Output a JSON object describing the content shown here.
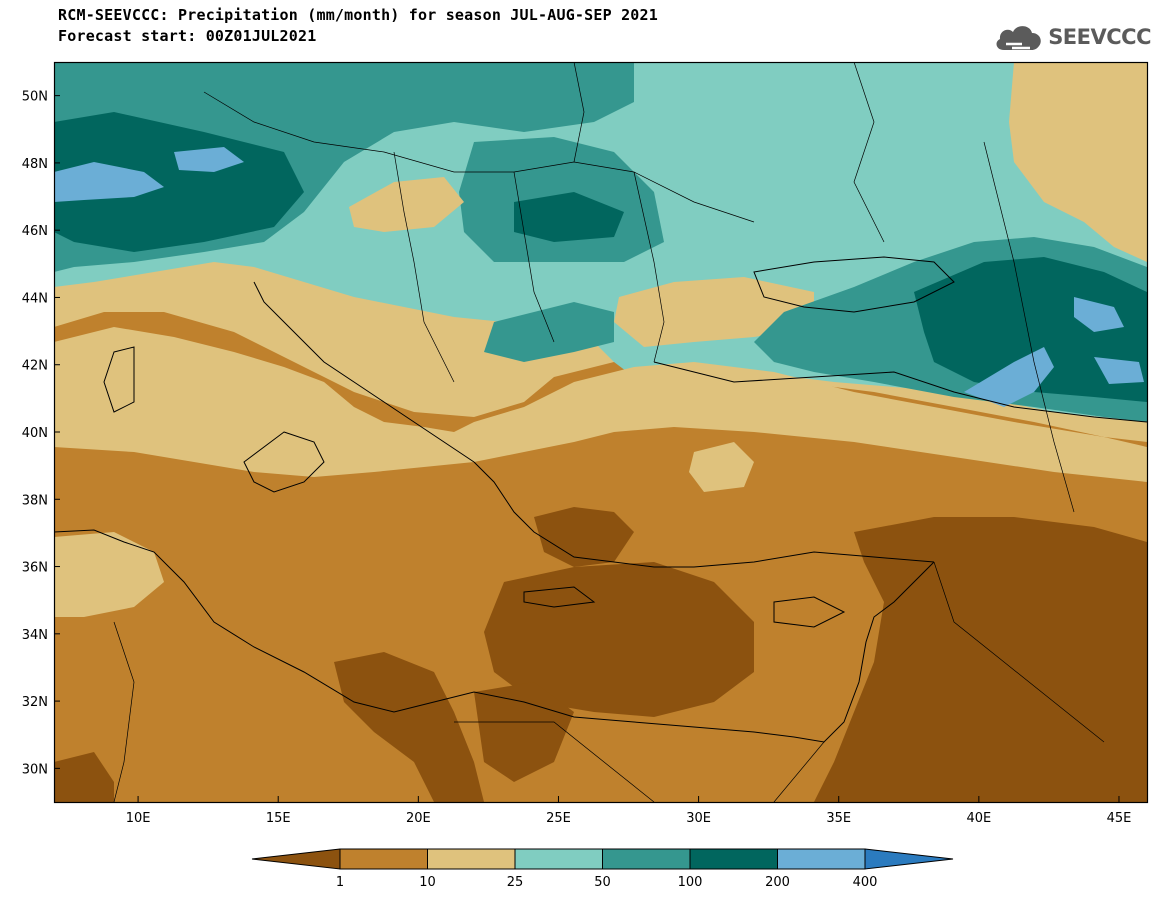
{
  "title": {
    "line1": "RCM-SEEVCCC: Precipitation (mm/month) for season JUL-AUG-SEP 2021",
    "line2": "Forecast start: 00Z01JUL2021"
  },
  "logo": {
    "text": "SEEVCCC",
    "icon": "cloud-icon"
  },
  "map": {
    "variable": "Precipitation",
    "units": "mm/month",
    "season": "JUL-AUG-SEP 2021",
    "lon_range": [
      7,
      46
    ],
    "lat_range": [
      29,
      51
    ],
    "lat_ticks": [
      "30N",
      "32N",
      "34N",
      "36N",
      "38N",
      "40N",
      "42N",
      "44N",
      "46N",
      "48N",
      "50N"
    ],
    "lat_values": [
      30,
      32,
      34,
      36,
      38,
      40,
      42,
      44,
      46,
      48,
      50
    ],
    "lon_ticks": [
      "10E",
      "15E",
      "20E",
      "25E",
      "30E",
      "35E",
      "40E",
      "45E"
    ],
    "lon_values": [
      10,
      15,
      20,
      25,
      30,
      35,
      40,
      45
    ]
  },
  "colorbar": {
    "labels": [
      "1",
      "10",
      "25",
      "50",
      "100",
      "200",
      "400"
    ],
    "colors": [
      "#8c520f",
      "#bf812d",
      "#dfc27d",
      "#80cdc1",
      "#35978f",
      "#01665e",
      "#6baed6",
      "#2b7bbf"
    ]
  }
}
